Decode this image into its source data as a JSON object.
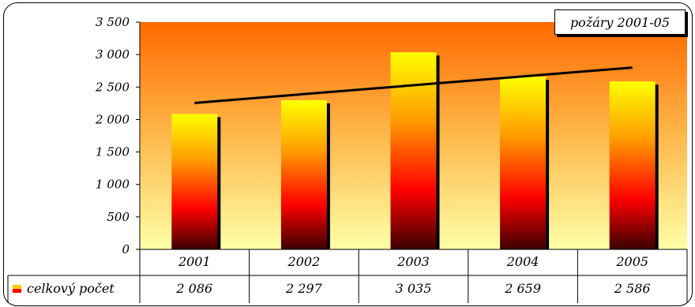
{
  "chart_data": {
    "type": "bar",
    "title": "požáry 2001-05",
    "categories": [
      "2001",
      "2002",
      "2003",
      "2004",
      "2005"
    ],
    "series": [
      {
        "name": "celkový počet",
        "values": [
          2086,
          2297,
          3035,
          2659,
          2586
        ],
        "value_labels": [
          "2 086",
          "2 297",
          "3 035",
          "2 659",
          "2 586"
        ]
      }
    ],
    "trendline": {
      "type": "linear",
      "start": 2255,
      "end": 2800
    },
    "y_ticks": [
      {
        "value": 0,
        "label": "0"
      },
      {
        "value": 500,
        "label": "500"
      },
      {
        "value": 1000,
        "label": "1 000"
      },
      {
        "value": 1500,
        "label": "1 500"
      },
      {
        "value": 2000,
        "label": "2 000"
      },
      {
        "value": 2500,
        "label": "2 500"
      },
      {
        "value": 3000,
        "label": "3 000"
      },
      {
        "value": 3500,
        "label": "3 500"
      }
    ],
    "ylim": [
      0,
      3500
    ],
    "data_table": true,
    "grid": false,
    "colors": {
      "bar_top": "#ffff00",
      "bar_mid": "#ff7f00",
      "bar_low": "#ff0000",
      "bar_bottom": "#400000",
      "plot_top": "#ff6a00",
      "plot_bottom": "#ffff99"
    }
  }
}
